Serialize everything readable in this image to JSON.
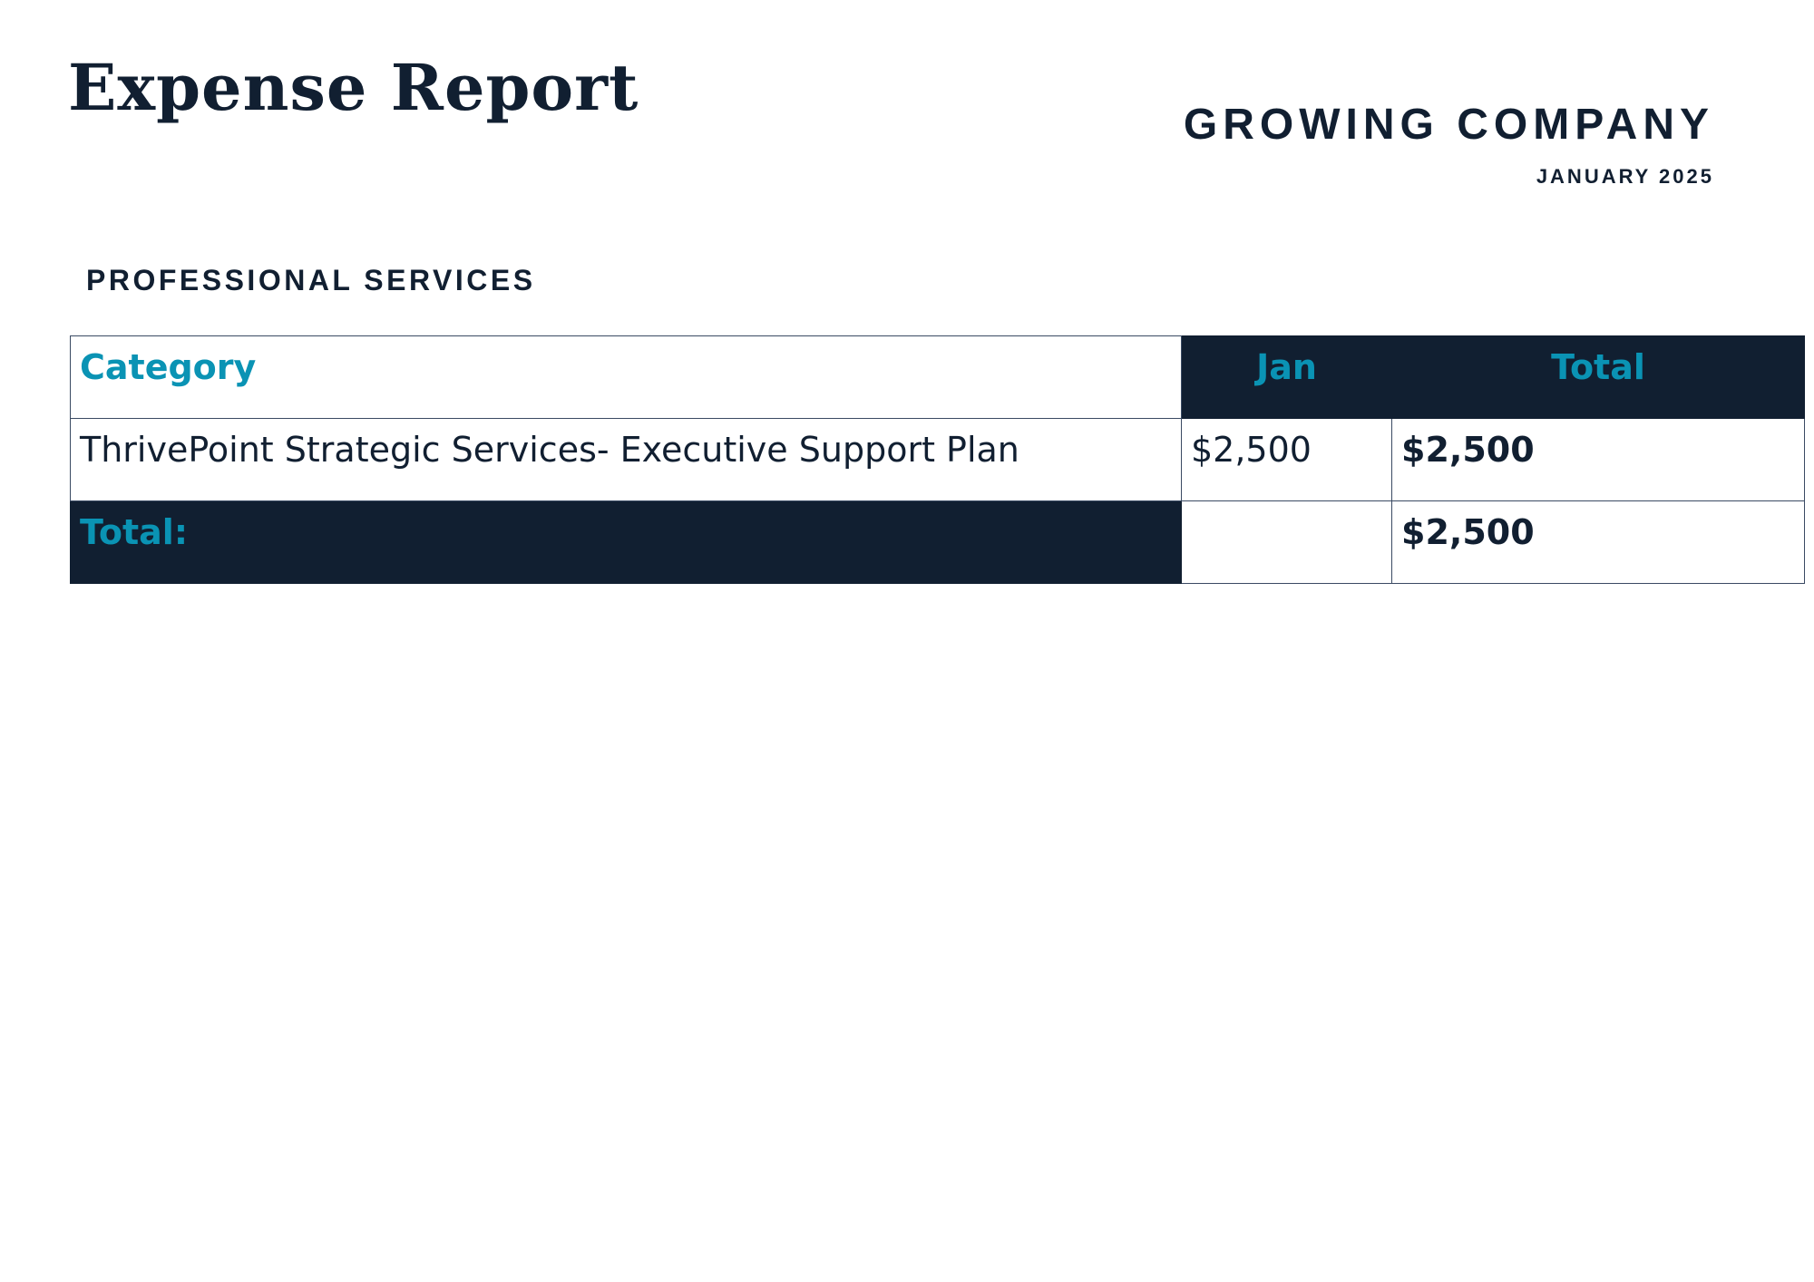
{
  "header": {
    "title": "Expense Report",
    "company": "GROWING COMPANY",
    "date": "JANUARY 2025"
  },
  "section": {
    "title": "PROFESSIONAL SERVICES"
  },
  "table": {
    "columns": [
      "Category",
      "Jan",
      "Total"
    ],
    "rows": [
      {
        "category": "ThrivePoint Strategic Services- Executive Support Plan",
        "jan": "$2,500",
        "total": "$2,500"
      }
    ],
    "footer": {
      "label": "Total:",
      "jan": "",
      "total": "$2,500"
    }
  },
  "colors": {
    "navy": "#111f31",
    "teal": "#0a93b4",
    "border": "#3a4a63"
  }
}
